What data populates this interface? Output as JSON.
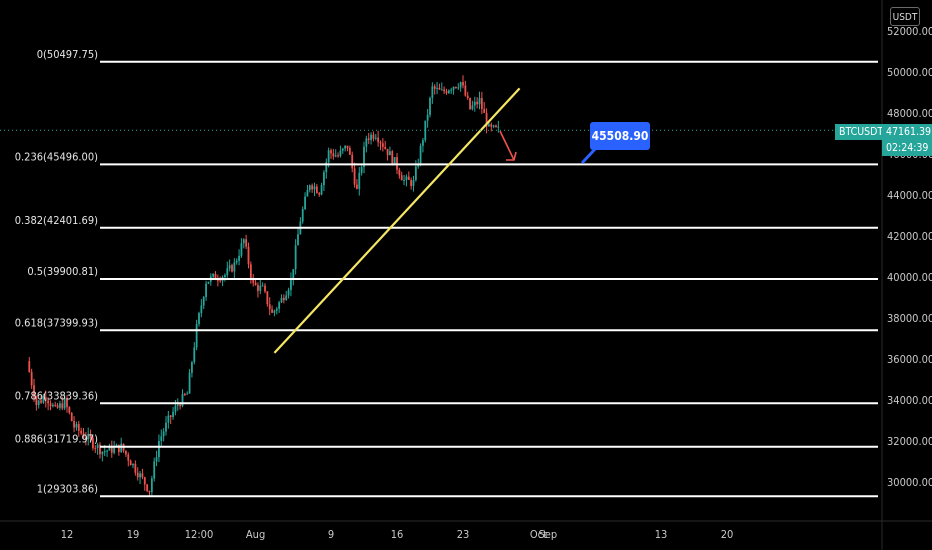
{
  "chart_data": {
    "type": "candlestick",
    "symbol": "BTCUSDT",
    "current_price": "47161.39",
    "countdown": "02:24:39",
    "unit": "USDT",
    "ylim": [
      28700,
      52800
    ],
    "y_ticks": [
      "52000.00",
      "50000.00",
      "48000.00",
      "46000.00",
      "44000.00",
      "42000.00",
      "40000.00",
      "38000.00",
      "36000.00",
      "34000.00",
      "32000.00",
      "30000.00"
    ],
    "x_ticks": [
      "12",
      "19",
      "12:00",
      "Aug",
      "9",
      "16",
      "23",
      "Sep",
      "13",
      "20",
      "Oct"
    ],
    "fib_levels": [
      {
        "label": "0(50497.75)",
        "value": 50497.75
      },
      {
        "label": "0.236(45496.00)",
        "value": 45496.0
      },
      {
        "label": "0.382(42401.69)",
        "value": 42401.69
      },
      {
        "label": "0.5(39900.81)",
        "value": 39900.81
      },
      {
        "label": "0.618(37399.93)",
        "value": 37399.93
      },
      {
        "label": "0.786(33839.36)",
        "value": 33839.36
      },
      {
        "label": "0.886(31719.97)",
        "value": 31719.97
      },
      {
        "label": "1(29303.86)",
        "value": 29303.86
      }
    ],
    "price_points": [
      [
        "07-08",
        35900
      ],
      [
        "07-09",
        33800
      ],
      [
        "07-10",
        34200
      ],
      [
        "07-11",
        33500
      ],
      [
        "07-12",
        33900
      ],
      [
        "07-13",
        32700
      ],
      [
        "07-14",
        32300
      ],
      [
        "07-15",
        31900
      ],
      [
        "07-16",
        31500
      ],
      [
        "07-17",
        31600
      ],
      [
        "07-18",
        31700
      ],
      [
        "07-19",
        31000
      ],
      [
        "07-20",
        30300
      ],
      [
        "07-21",
        29600
      ],
      [
        "07-22",
        32000
      ],
      [
        "07-23",
        33000
      ],
      [
        "07-24",
        33800
      ],
      [
        "07-25",
        34300
      ],
      [
        "07-26",
        37500
      ],
      [
        "07-27",
        39800
      ],
      [
        "07-28",
        40000
      ],
      [
        "07-29",
        40100
      ],
      [
        "07-30",
        40600
      ],
      [
        "07-31",
        41800
      ],
      [
        "08-01",
        39600
      ],
      [
        "08-02",
        39400
      ],
      [
        "08-03",
        38200
      ],
      [
        "08-04",
        38900
      ],
      [
        "08-05",
        39800
      ],
      [
        "08-06",
        42800
      ],
      [
        "08-07",
        44600
      ],
      [
        "08-08",
        44200
      ],
      [
        "08-09",
        46100
      ],
      [
        "08-10",
        45900
      ],
      [
        "08-11",
        46400
      ],
      [
        "08-12",
        44200
      ],
      [
        "08-13",
        46800
      ],
      [
        "08-14",
        47000
      ],
      [
        "08-15",
        46300
      ],
      [
        "08-16",
        45600
      ],
      [
        "08-17",
        44700
      ],
      [
        "08-18",
        44600
      ],
      [
        "08-19",
        46800
      ],
      [
        "08-20",
        49200
      ],
      [
        "08-21",
        49000
      ],
      [
        "08-22",
        49300
      ],
      [
        "08-23",
        49500
      ],
      [
        "08-24",
        48200
      ],
      [
        "08-25",
        48600
      ],
      [
        "08-26",
        47200
      ],
      [
        "08-27",
        47161
      ]
    ],
    "trendline": {
      "from": [
        "08-03",
        36300
      ],
      "to": [
        "08-29",
        49200
      ],
      "color": "#f5e663"
    },
    "callout_value": "45508.90",
    "colors": {
      "up": "#26a69a",
      "down": "#ef5350",
      "fib": "#ffffff",
      "callout": "#2962ff"
    }
  }
}
